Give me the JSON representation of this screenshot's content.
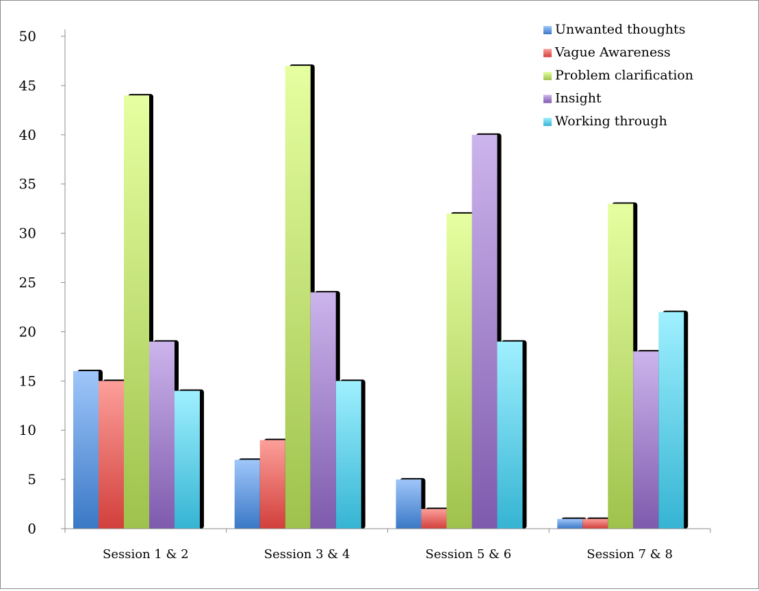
{
  "chart_data": {
    "type": "bar",
    "title": "",
    "xlabel": "",
    "ylabel": "",
    "ylim": [
      0,
      50
    ],
    "yticks": [
      0,
      5,
      10,
      15,
      20,
      25,
      30,
      35,
      40,
      45,
      50
    ],
    "grid": false,
    "legend_position": "top-right",
    "style": "3d-shadow-gradient",
    "categories": [
      "Session 1 & 2",
      "Session 3 & 4",
      "Session 5 & 6",
      "Session 7 & 8"
    ],
    "series": [
      {
        "name": "Unwanted thoughts",
        "values": [
          16,
          7,
          5,
          1
        ],
        "color_dark": "#3a78c6",
        "color_light": "#9fc6fa"
      },
      {
        "name": "Vague Awareness",
        "values": [
          15,
          9,
          2,
          1
        ],
        "color_dark": "#d23f3b",
        "color_light": "#fc9f9a"
      },
      {
        "name": "Problem clarification",
        "values": [
          44,
          47,
          32,
          33
        ],
        "color_dark": "#9ec24c",
        "color_light": "#e6ffa1"
      },
      {
        "name": "Insight",
        "values": [
          19,
          24,
          40,
          18
        ],
        "color_dark": "#7e5aad",
        "color_light": "#ccb4ec"
      },
      {
        "name": "Working through",
        "values": [
          14,
          15,
          19,
          22
        ],
        "color_dark": "#35b4d3",
        "color_light": "#9ff0ff"
      }
    ]
  }
}
